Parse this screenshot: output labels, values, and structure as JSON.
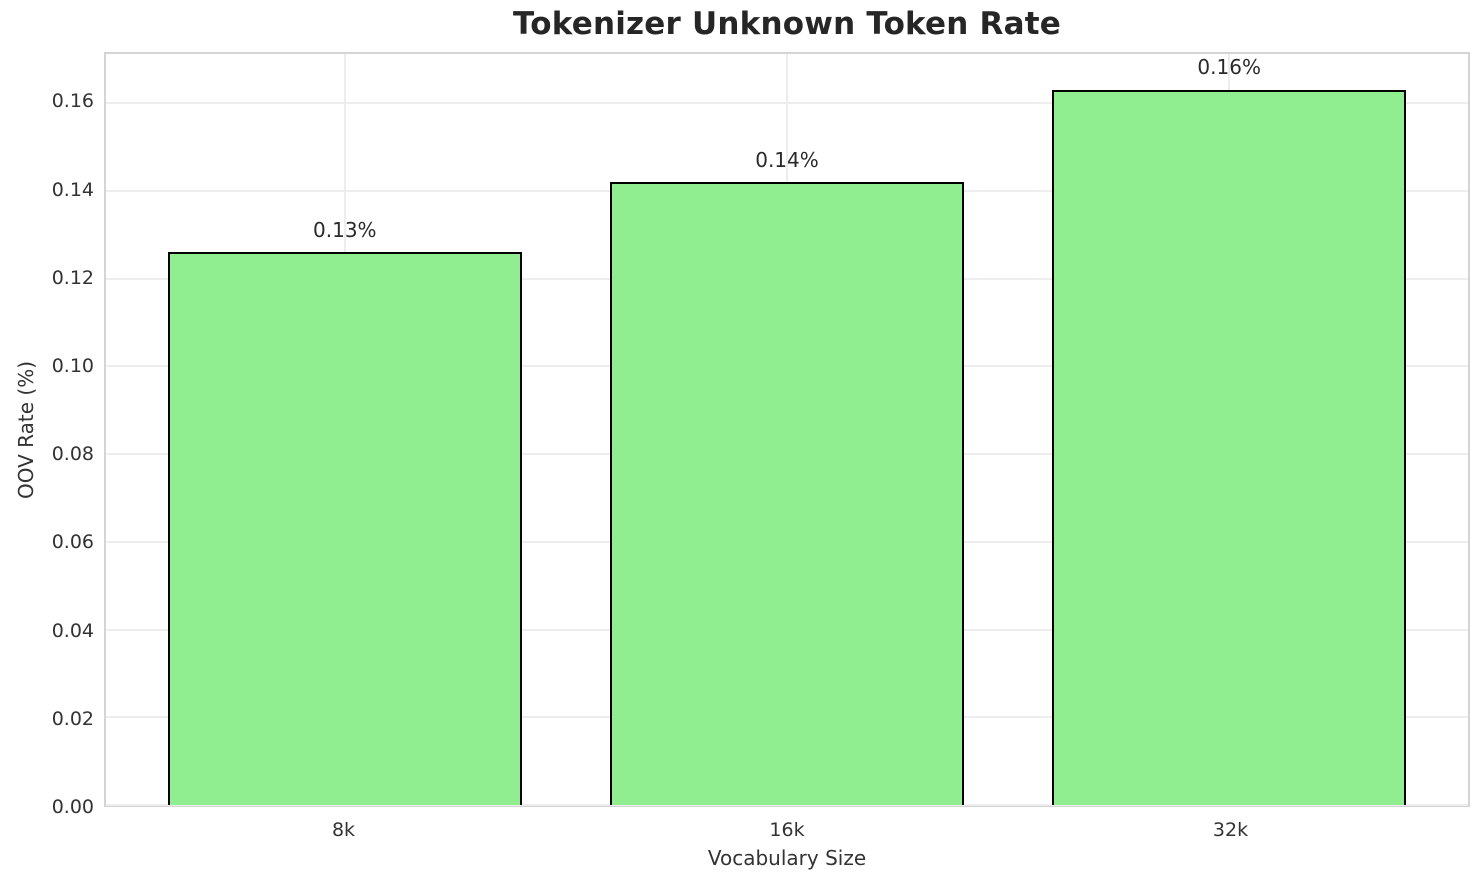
{
  "chart_data": {
    "type": "bar",
    "title": "Tokenizer Unknown Token Rate",
    "xlabel": "Vocabulary Size",
    "ylabel": "OOV Rate (%)",
    "categories": [
      "8k",
      "16k",
      "32k"
    ],
    "values": [
      0.126,
      0.142,
      0.163
    ],
    "bar_labels": [
      "0.13%",
      "0.14%",
      "0.16%"
    ],
    "yticks": [
      0.0,
      0.02,
      0.04,
      0.06,
      0.08,
      0.1,
      0.12,
      0.14,
      0.16
    ],
    "ytick_labels": [
      "0.00",
      "0.02",
      "0.04",
      "0.06",
      "0.08",
      "0.10",
      "0.12",
      "0.14",
      "0.16"
    ],
    "ylim": [
      0,
      0.1712
    ],
    "grid": true,
    "legend_position": "none",
    "bar_color": "#90EE90",
    "bar_edge_color": "#000000",
    "grid_color": "#ededed",
    "spine_color": "#d4d4d4",
    "title_color": "#262626",
    "text_color": "#333333"
  }
}
